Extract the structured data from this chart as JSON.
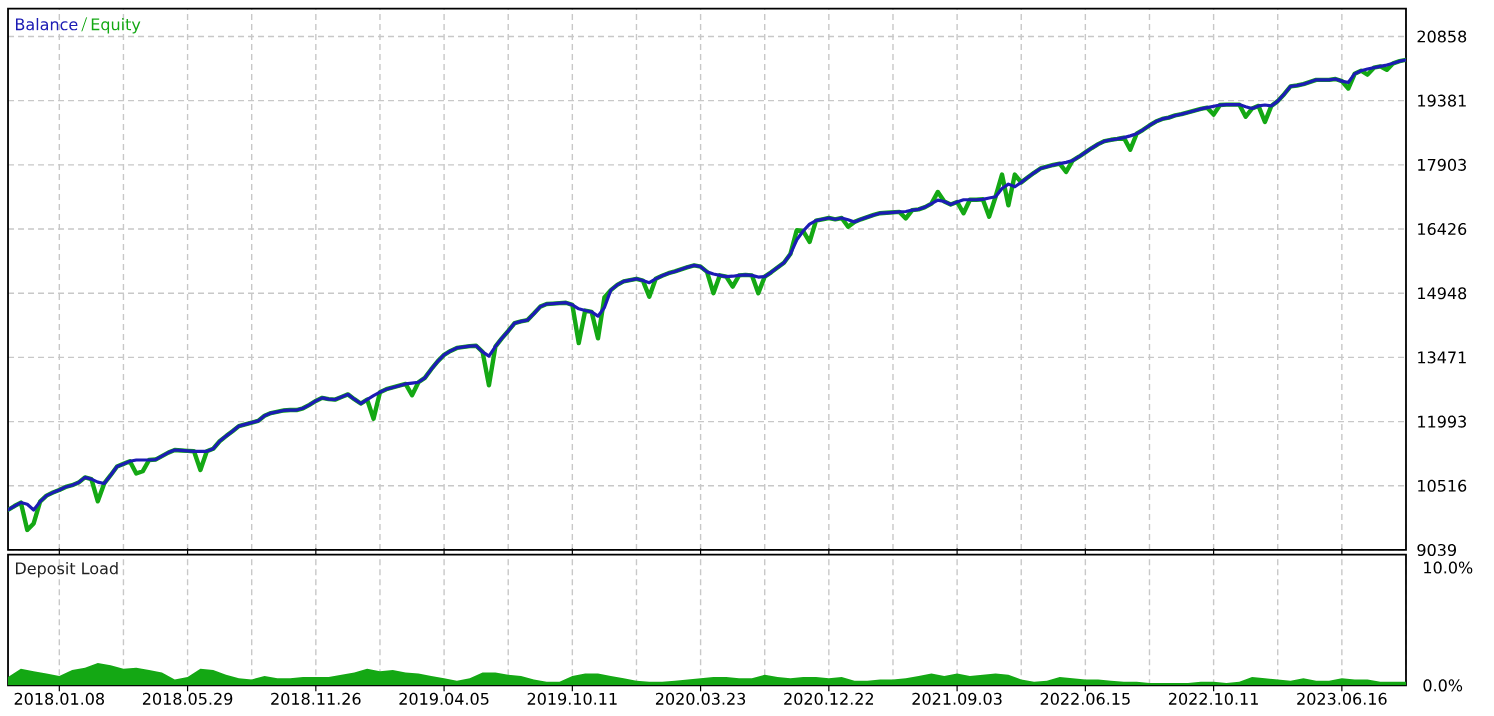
{
  "chart_data": [
    {
      "type": "line",
      "categories": [
        null,
        null,
        null,
        null,
        null,
        null,
        null,
        null,
        "2018.01.08",
        null,
        null,
        null,
        null,
        null,
        null,
        null,
        null,
        null,
        null,
        null,
        null,
        null,
        null,
        null,
        null,
        null,
        null,
        null,
        "2018.05.29",
        null,
        null,
        null,
        null,
        null,
        null,
        null,
        null,
        null,
        null,
        null,
        null,
        null,
        null,
        null,
        null,
        null,
        null,
        null,
        "2018.11.26",
        null,
        null,
        null,
        null,
        null,
        null,
        null,
        null,
        null,
        null,
        null,
        null,
        null,
        null,
        null,
        null,
        null,
        null,
        null,
        "2019.04.05",
        null,
        null,
        null,
        null,
        null,
        null,
        null,
        null,
        null,
        null,
        null,
        null,
        null,
        null,
        null,
        null,
        null,
        null,
        null,
        "2019.10.11",
        null,
        null,
        null,
        null,
        null,
        null,
        null,
        null,
        null,
        null,
        null,
        null,
        null,
        null,
        null,
        null,
        null,
        null,
        null,
        "2020.03.23",
        null,
        null,
        null,
        null,
        null,
        null,
        null,
        null,
        null,
        null,
        null,
        null,
        null,
        null,
        null,
        null,
        null,
        null,
        null,
        "2020.12.22",
        null,
        null,
        null,
        null,
        null,
        null,
        null,
        null,
        null,
        null,
        null,
        null,
        null,
        null,
        null,
        null,
        null,
        null,
        null,
        "2021.09.03",
        null,
        null,
        null,
        null,
        null,
        null,
        null,
        null,
        null,
        null,
        null,
        null,
        null,
        null,
        null,
        null,
        null,
        null,
        null,
        "2022.06.15",
        null,
        null,
        null,
        null,
        null,
        null,
        null,
        null,
        null,
        null,
        null,
        null,
        null,
        null,
        null,
        null,
        null,
        null,
        null,
        "2022.10.11",
        null,
        null,
        null,
        null,
        null,
        null,
        null,
        null,
        null,
        null,
        null,
        null,
        null,
        null,
        null,
        null,
        null,
        null,
        null,
        "2023.06.16",
        null,
        null,
        null,
        null,
        null,
        null,
        null,
        null,
        null,
        null
      ],
      "ylim": [
        9039,
        21500
      ],
      "yticks": [
        9039,
        10516,
        11993,
        13471,
        14948,
        16426,
        17903,
        19381,
        20858
      ],
      "grid": true,
      "tick_labels": "y",
      "series": [
        {
          "name": "Balance",
          "color": "#1c1cb4",
          "values": [
            9960,
            10050,
            10130,
            10090,
            9960,
            10150,
            10290,
            10360,
            10420,
            10490,
            10530,
            10590,
            10710,
            10670,
            10600,
            10570,
            10760,
            10960,
            11020,
            11080,
            11110,
            11110,
            11110,
            11120,
            11200,
            11280,
            11340,
            11330,
            11320,
            11310,
            11310,
            11310,
            11370,
            11540,
            11660,
            11770,
            11890,
            11930,
            11970,
            12010,
            12130,
            12190,
            12220,
            12250,
            12260,
            12260,
            12300,
            12380,
            12470,
            12540,
            12510,
            12500,
            12560,
            12620,
            12510,
            12410,
            12500,
            12590,
            12670,
            12740,
            12780,
            12820,
            12860,
            12880,
            12900,
            13000,
            13200,
            13380,
            13530,
            13620,
            13690,
            13710,
            13730,
            13740,
            13600,
            13500,
            13720,
            13910,
            14080,
            14260,
            14300,
            14330,
            14480,
            14640,
            14700,
            14710,
            14720,
            14730,
            14680,
            14590,
            14550,
            14520,
            14420,
            14620,
            15020,
            15140,
            15220,
            15250,
            15280,
            15240,
            15190,
            15280,
            15350,
            15410,
            15450,
            15500,
            15550,
            15590,
            15560,
            15440,
            15390,
            15360,
            15330,
            15340,
            15360,
            15370,
            15360,
            15320,
            15330,
            15430,
            15540,
            15650,
            15850,
            16180,
            16380,
            16540,
            16620,
            16650,
            16680,
            16650,
            16680,
            16640,
            16590,
            16650,
            16700,
            16750,
            16790,
            16800,
            16810,
            16820,
            16830,
            16860,
            16880,
            16930,
            17010,
            17090,
            17060,
            16990,
            17050,
            17100,
            17100,
            17100,
            17110,
            17140,
            17170,
            17360,
            17460,
            17400,
            17500,
            17610,
            17720,
            17820,
            17860,
            17900,
            17930,
            17960,
            18000,
            18090,
            18190,
            18290,
            18380,
            18450,
            18480,
            18500,
            18530,
            18570,
            18620,
            18710,
            18810,
            18900,
            18960,
            18990,
            19040,
            19070,
            19110,
            19150,
            19190,
            19220,
            19250,
            19280,
            19290,
            19290,
            19290,
            19240,
            19200,
            19260,
            19280,
            19260,
            19370,
            19530,
            19710,
            19730,
            19760,
            19810,
            19860,
            19860,
            19860,
            19880,
            19830,
            19800,
            20000,
            20070,
            20110,
            20140,
            20170,
            20200,
            20240,
            20290,
            20320
          ]
        },
        {
          "name": "Equity",
          "color": "#14a814",
          "values": [
            9960,
            10050,
            10130,
            9500,
            9650,
            10150,
            10290,
            10360,
            10420,
            10490,
            10530,
            10590,
            10710,
            10670,
            10160,
            10570,
            10760,
            10960,
            11020,
            11080,
            10800,
            10850,
            11110,
            11120,
            11200,
            11280,
            11340,
            11330,
            11320,
            11310,
            10880,
            11310,
            11370,
            11540,
            11660,
            11770,
            11890,
            11930,
            11970,
            12010,
            12130,
            12190,
            12220,
            12250,
            12260,
            12260,
            12300,
            12380,
            12470,
            12540,
            12510,
            12500,
            12560,
            12620,
            12510,
            12410,
            12500,
            12060,
            12670,
            12740,
            12780,
            12820,
            12860,
            12600,
            12900,
            13000,
            13200,
            13380,
            13530,
            13620,
            13690,
            13710,
            13730,
            13740,
            13600,
            12830,
            13720,
            13910,
            14080,
            14260,
            14300,
            14330,
            14480,
            14640,
            14700,
            14710,
            14720,
            14730,
            14680,
            13800,
            14550,
            14520,
            13910,
            14850,
            15020,
            15140,
            15220,
            15250,
            15280,
            15240,
            14870,
            15280,
            15350,
            15410,
            15450,
            15500,
            15550,
            15590,
            15560,
            15440,
            14950,
            15360,
            15330,
            15100,
            15360,
            15370,
            15360,
            14950,
            15330,
            15430,
            15540,
            15650,
            15850,
            16400,
            16380,
            16130,
            16620,
            16650,
            16680,
            16650,
            16680,
            16480,
            16590,
            16650,
            16700,
            16750,
            16790,
            16800,
            16810,
            16820,
            16670,
            16860,
            16880,
            16930,
            17010,
            17280,
            17060,
            16990,
            17050,
            16790,
            17100,
            17100,
            17110,
            16710,
            17170,
            17680,
            16970,
            17680,
            17500,
            17610,
            17720,
            17820,
            17860,
            17900,
            17930,
            17740,
            18000,
            18090,
            18190,
            18290,
            18380,
            18450,
            18480,
            18500,
            18530,
            18250,
            18620,
            18710,
            18810,
            18900,
            18960,
            18990,
            19040,
            19070,
            19110,
            19150,
            19190,
            19220,
            19060,
            19280,
            19290,
            19290,
            19290,
            19010,
            19200,
            19260,
            18890,
            19260,
            19370,
            19530,
            19710,
            19730,
            19760,
            19810,
            19860,
            19860,
            19860,
            19880,
            19830,
            19660,
            20000,
            20070,
            19980,
            20140,
            20170,
            20090,
            20240,
            20290,
            20320
          ]
        }
      ]
    },
    {
      "type": "area",
      "title": "Deposit Load",
      "color": "#14a814",
      "categories": [
        null,
        null,
        null,
        null,
        "2018.01.08",
        null,
        null,
        null,
        null,
        null,
        null,
        null,
        null,
        null,
        "2018.05.29",
        null,
        null,
        null,
        null,
        null,
        null,
        null,
        null,
        null,
        "2018.11.26",
        null,
        null,
        null,
        null,
        null,
        null,
        null,
        null,
        null,
        "2019.04.05",
        null,
        null,
        null,
        null,
        null,
        null,
        null,
        null,
        null,
        "2019.10.11",
        null,
        null,
        null,
        null,
        null,
        null,
        null,
        null,
        null,
        "2020.03.23",
        null,
        null,
        null,
        null,
        null,
        null,
        null,
        null,
        null,
        "2020.12.22",
        null,
        null,
        null,
        null,
        null,
        null,
        null,
        null,
        null,
        "2021.09.03",
        null,
        null,
        null,
        null,
        null,
        null,
        null,
        null,
        null,
        "2022.06.15",
        null,
        null,
        null,
        null,
        null,
        null,
        null,
        null,
        null,
        "2022.10.11",
        null,
        null,
        null,
        null,
        null,
        null,
        null,
        null,
        null,
        "2023.06.16",
        null,
        null,
        null,
        null,
        null
      ],
      "ylim": [
        0,
        11.1
      ],
      "yticks": [
        {
          "value": 10,
          "label": "10.0%"
        },
        {
          "value": 0,
          "label": "0.0%"
        }
      ],
      "grid": "x",
      "values": [
        0.7,
        1.4,
        1.2,
        1.0,
        0.8,
        1.3,
        1.5,
        1.9,
        1.7,
        1.4,
        1.5,
        1.3,
        1.1,
        0.5,
        0.7,
        1.4,
        1.3,
        0.9,
        0.6,
        0.5,
        0.8,
        0.6,
        0.6,
        0.7,
        0.7,
        0.7,
        0.9,
        1.1,
        1.4,
        1.2,
        1.3,
        1.1,
        1.0,
        0.8,
        0.6,
        0.4,
        0.6,
        1.1,
        1.1,
        0.9,
        0.8,
        0.5,
        0.3,
        0.3,
        0.8,
        1.0,
        1.0,
        0.8,
        0.6,
        0.4,
        0.3,
        0.3,
        0.4,
        0.5,
        0.6,
        0.7,
        0.7,
        0.6,
        0.6,
        0.9,
        0.7,
        0.6,
        0.7,
        0.7,
        0.6,
        0.7,
        0.4,
        0.4,
        0.5,
        0.5,
        0.6,
        0.8,
        1.0,
        0.8,
        1.0,
        0.8,
        0.9,
        1.0,
        0.9,
        0.5,
        0.3,
        0.4,
        0.7,
        0.6,
        0.5,
        0.5,
        0.4,
        0.3,
        0.3,
        0.2,
        0.2,
        0.2,
        0.2,
        0.3,
        0.3,
        0.2,
        0.3,
        0.7,
        0.6,
        0.5,
        0.4,
        0.6,
        0.4,
        0.4,
        0.6,
        0.5,
        0.5,
        0.3,
        0.3,
        0.3
      ]
    }
  ]
}
